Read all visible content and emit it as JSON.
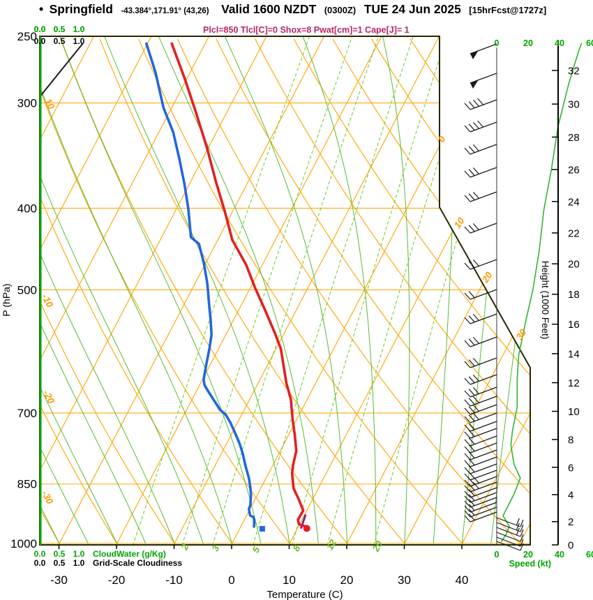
{
  "header": {
    "bullet": "•",
    "station": "Springfield",
    "coords": "-43.384°,171.91° (43,26)",
    "valid": "Valid 1600 NZDT",
    "valid_z": "(0300Z)",
    "date": "TUE 24 Jun 2025",
    "fcst": "[15hrFcst@1727z]",
    "indices": "Plcl=850 Tlcl[C]=0 Shox=8 Pwat[cm]=1 Cape[J]= 1"
  },
  "axes": {
    "pressure": {
      "label": "P (hPa)",
      "ticks": [
        250,
        300,
        400,
        500,
        700,
        850,
        1000
      ]
    },
    "temperature": {
      "label": "Temperature (C)",
      "ticks": [
        -30,
        -20,
        -10,
        0,
        10,
        20,
        30,
        40
      ]
    },
    "height": {
      "label": "Height (1000 Feet)",
      "ticks": [
        0,
        2,
        4,
        6,
        8,
        10,
        12,
        14,
        16,
        18,
        20,
        22,
        24,
        26,
        28,
        30,
        32
      ]
    },
    "speed": {
      "label": "Speed (kt)",
      "ticks": [
        0,
        20,
        40,
        60
      ]
    },
    "cloud_scales": {
      "values": [
        "0.0",
        "0.5",
        "1.0"
      ],
      "green_label": "CloudWater (g/Kg)",
      "black_label": "Grid-Scale Cloudiness"
    }
  },
  "colors": {
    "isolines_orange": "#ffaa11",
    "moist_adiabat_green": "#55bb33",
    "mixing_green": "#77cc33",
    "axis_green": "#00a400",
    "speed_curve_green": "#33b333",
    "temperature_red": "#e31f1f",
    "dewpoint_blue": "#2166e0",
    "parcel_purple": "#7a1fa0",
    "indices_magenta": "#b82565",
    "border_dark": "#262600",
    "barb_black": "#1a1a1a",
    "label_orange": "#ff9900",
    "mixing_label_green": "#66bb22"
  },
  "chart_data": {
    "type": "skew-t log-p sounding",
    "isobar_lines_hpa": [
      300,
      400,
      500,
      700,
      850,
      1000
    ],
    "isotherm_step_c": 10,
    "dry_adiabat_step_c": 10,
    "moist_adiabat_step_c": 5,
    "mixing_ratio_lines_gkg": [
      1,
      2,
      3,
      5,
      8,
      12,
      20
    ],
    "line_labels": [
      {
        "text": "10",
        "x": 67,
        "y": 151,
        "rot": 62,
        "color": "#ff9900"
      },
      {
        "text": "-10",
        "x": 64,
        "y": 433,
        "rot": 62,
        "color": "#ff9900"
      },
      {
        "text": "-20",
        "x": 66,
        "y": 571,
        "rot": 62,
        "color": "#ff9900"
      },
      {
        "text": "-30",
        "x": 64,
        "y": 715,
        "rot": 62,
        "color": "#ff9900"
      },
      {
        "text": "0",
        "x": 637,
        "y": 202,
        "rot": -57,
        "color": "#ff9900"
      },
      {
        "text": "10",
        "x": 662,
        "y": 322,
        "rot": -57,
        "color": "#ff9900"
      },
      {
        "text": "20",
        "x": 702,
        "y": 400,
        "rot": -57,
        "color": "#ff9900"
      },
      {
        "text": "30",
        "x": 751,
        "y": 482,
        "rot": -57,
        "color": "#ff9900"
      },
      {
        "text": "2",
        "x": 269,
        "y": 786,
        "rot": -62,
        "color": "#66bb22"
      },
      {
        "text": "3",
        "x": 313,
        "y": 788,
        "rot": -62,
        "color": "#66bb22"
      },
      {
        "text": "5",
        "x": 371,
        "y": 790,
        "rot": -62,
        "color": "#66bb22"
      },
      {
        "text": "8",
        "x": 429,
        "y": 788,
        "rot": -62,
        "color": "#66bb22"
      },
      {
        "text": "12",
        "x": 479,
        "y": 783,
        "rot": -62,
        "color": "#66bb22"
      },
      {
        "text": "20",
        "x": 545,
        "y": 785,
        "rot": -62,
        "color": "#66bb22"
      }
    ],
    "series": [
      {
        "name": "temperature",
        "units": "hPa,C",
        "color": "#e31f1f",
        "width": 3.6,
        "points": [
          [
            255,
            -55.8
          ],
          [
            281,
            -50.3
          ],
          [
            307,
            -45.5
          ],
          [
            338,
            -40.4
          ],
          [
            372,
            -35.6
          ],
          [
            404,
            -31.3
          ],
          [
            436,
            -27.5
          ],
          [
            467,
            -22.8
          ],
          [
            497,
            -19.2
          ],
          [
            526,
            -15.7
          ],
          [
            561,
            -11.8
          ],
          [
            587,
            -9.2
          ],
          [
            645,
            -5.1
          ],
          [
            675,
            -2.8
          ],
          [
            711,
            -0.8
          ],
          [
            744,
            1.1
          ],
          [
            777,
            2.8
          ],
          [
            807,
            3.5
          ],
          [
            826,
            4.1
          ],
          [
            860,
            5.7
          ],
          [
            888,
            7.7
          ],
          [
            914,
            9.4
          ],
          [
            937,
            9.3
          ],
          [
            949,
            9.9
          ],
          [
            955,
            11.3
          ]
        ]
      },
      {
        "name": "dewpoint",
        "units": "hPa,C",
        "color": "#2166e0",
        "width": 3.6,
        "points": [
          [
            255,
            -60.2
          ],
          [
            276,
            -56.0
          ],
          [
            304,
            -51.4
          ],
          [
            325,
            -47.5
          ],
          [
            349,
            -44.1
          ],
          [
            374,
            -40.9
          ],
          [
            401,
            -37.9
          ],
          [
            433,
            -34.9
          ],
          [
            441,
            -32.9
          ],
          [
            465,
            -30.3
          ],
          [
            492,
            -27.8
          ],
          [
            521,
            -25.6
          ],
          [
            544,
            -23.9
          ],
          [
            565,
            -22.5
          ],
          [
            587,
            -21.6
          ],
          [
            613,
            -20.7
          ],
          [
            639,
            -19.8
          ],
          [
            649,
            -19.1
          ],
          [
            660,
            -17.9
          ],
          [
            694,
            -14.2
          ],
          [
            703,
            -12.8
          ],
          [
            719,
            -11.2
          ],
          [
            744,
            -9.1
          ],
          [
            763,
            -7.6
          ],
          [
            782,
            -6.3
          ],
          [
            807,
            -4.8
          ],
          [
            838,
            -2.9
          ],
          [
            860,
            -1.8
          ],
          [
            876,
            -1.1
          ],
          [
            900,
            -0.3
          ],
          [
            910,
            -0.2
          ],
          [
            926,
            0.6
          ],
          [
            931,
            1.4
          ],
          [
            945,
            2.0
          ],
          [
            955,
            2.3
          ]
        ]
      },
      {
        "name": "parcel",
        "units": "hPa,C",
        "color": "#7a1fa0",
        "width": 3,
        "points": [
          [
            958,
            10.6
          ],
          [
            926,
            10.2
          ]
        ]
      },
      {
        "name": "wind_speed",
        "units": "hPa,kt",
        "color": "#33b333",
        "width": 1.6,
        "points": [
          [
            995,
            3
          ],
          [
            975,
            6
          ],
          [
            954,
            8
          ],
          [
            927,
            4
          ],
          [
            874,
            11
          ],
          [
            836,
            15
          ],
          [
            806,
            11
          ],
          [
            764,
            9
          ],
          [
            736,
            10
          ],
          [
            689,
            13
          ],
          [
            639,
            13
          ],
          [
            598,
            14
          ],
          [
            539,
            19
          ],
          [
            500,
            23
          ],
          [
            450,
            27
          ],
          [
            402,
            30
          ],
          [
            358,
            35
          ],
          [
            320,
            39
          ],
          [
            284,
            46
          ],
          [
            261,
            52
          ],
          [
            255,
            54
          ]
        ]
      },
      {
        "name": "cloud_water",
        "units": "hPa,gkg",
        "color": "#00a400",
        "width": 3,
        "points": [
          [
            1000,
            0
          ],
          [
            250,
            0
          ]
        ]
      },
      {
        "name": "grid_scale_cloudiness",
        "units": "hPa,frac",
        "color": "#1a1a1a",
        "width": 2,
        "points": [
          [
            295,
            0
          ],
          [
            255,
            1.1
          ]
        ]
      }
    ],
    "surface_markers": {
      "temperature": {
        "p": 956,
        "t": 11.5
      },
      "dewpoint": {
        "p": 957,
        "t": 3.8
      }
    },
    "wind_barbs": [
      [
        63,
        "P"
      ],
      [
        105,
        "P"
      ],
      [
        143,
        "4"
      ],
      [
        175,
        "4"
      ],
      [
        207,
        "3"
      ],
      [
        240,
        "3"
      ],
      [
        275,
        "3"
      ],
      [
        320,
        "3"
      ],
      [
        372,
        "3"
      ],
      [
        415,
        "2"
      ],
      [
        450,
        "3"
      ],
      [
        483,
        "3"
      ],
      [
        513,
        "3"
      ],
      [
        537,
        "3"
      ],
      [
        555,
        "3"
      ],
      [
        568,
        "3"
      ],
      [
        580,
        "3"
      ],
      [
        592,
        "3"
      ],
      [
        604,
        "2"
      ],
      [
        614,
        "2"
      ],
      [
        625,
        "2"
      ],
      [
        635,
        "2"
      ],
      [
        645,
        "2"
      ],
      [
        655,
        "2"
      ],
      [
        665,
        "2"
      ],
      [
        674,
        "2"
      ],
      [
        683,
        "3"
      ],
      [
        691,
        "3"
      ],
      [
        699,
        "2"
      ],
      [
        706,
        "2"
      ],
      [
        713,
        "2"
      ],
      [
        720,
        "2"
      ],
      [
        727,
        "2"
      ],
      [
        734,
        "2"
      ],
      [
        742,
        "S2"
      ],
      [
        749,
        "S2"
      ],
      [
        756,
        "S2"
      ],
      [
        763,
        "S1"
      ],
      [
        770,
        "S1"
      ],
      [
        776,
        "S1"
      ]
    ]
  }
}
